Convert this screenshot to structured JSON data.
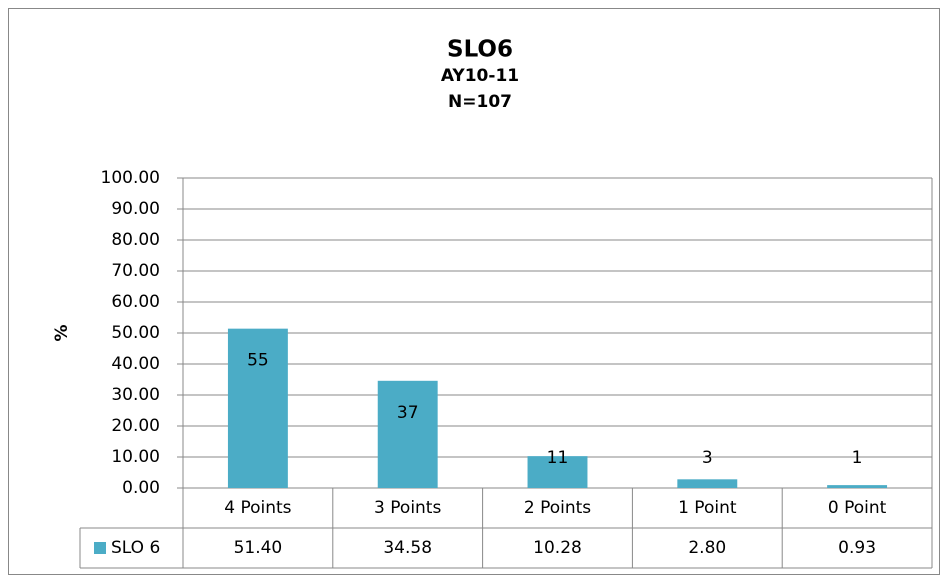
{
  "chart_data": {
    "type": "bar",
    "title": "SLO6",
    "subtitles": [
      "AY10-11",
      "N=107"
    ],
    "ylabel": "%",
    "categories": [
      "4 Points",
      "3 Points",
      "2 Points",
      "1 Point",
      "0 Point"
    ],
    "series": [
      {
        "name": "SLO 6",
        "color": "#4bacc6",
        "values": [
          51.4,
          34.58,
          10.28,
          2.8,
          0.93
        ],
        "value_labels": [
          "51.40",
          "34.58",
          "10.28",
          "2.80",
          "0.93"
        ],
        "counts": [
          55,
          37,
          11,
          3,
          1
        ]
      }
    ],
    "ylim": [
      0,
      100
    ],
    "yticks": [
      {
        "value": 0,
        "label": "0.00"
      },
      {
        "value": 10,
        "label": "10.00"
      },
      {
        "value": 20,
        "label": "20.00"
      },
      {
        "value": 30,
        "label": "30.00"
      },
      {
        "value": 40,
        "label": "40.00"
      },
      {
        "value": 50,
        "label": "50.00"
      },
      {
        "value": 60,
        "label": "60.00"
      },
      {
        "value": 70,
        "label": "70.00"
      },
      {
        "value": 80,
        "label": "80.00"
      },
      {
        "value": 90,
        "label": "90.00"
      },
      {
        "value": 100,
        "label": "100.00"
      }
    ],
    "grid": true
  }
}
